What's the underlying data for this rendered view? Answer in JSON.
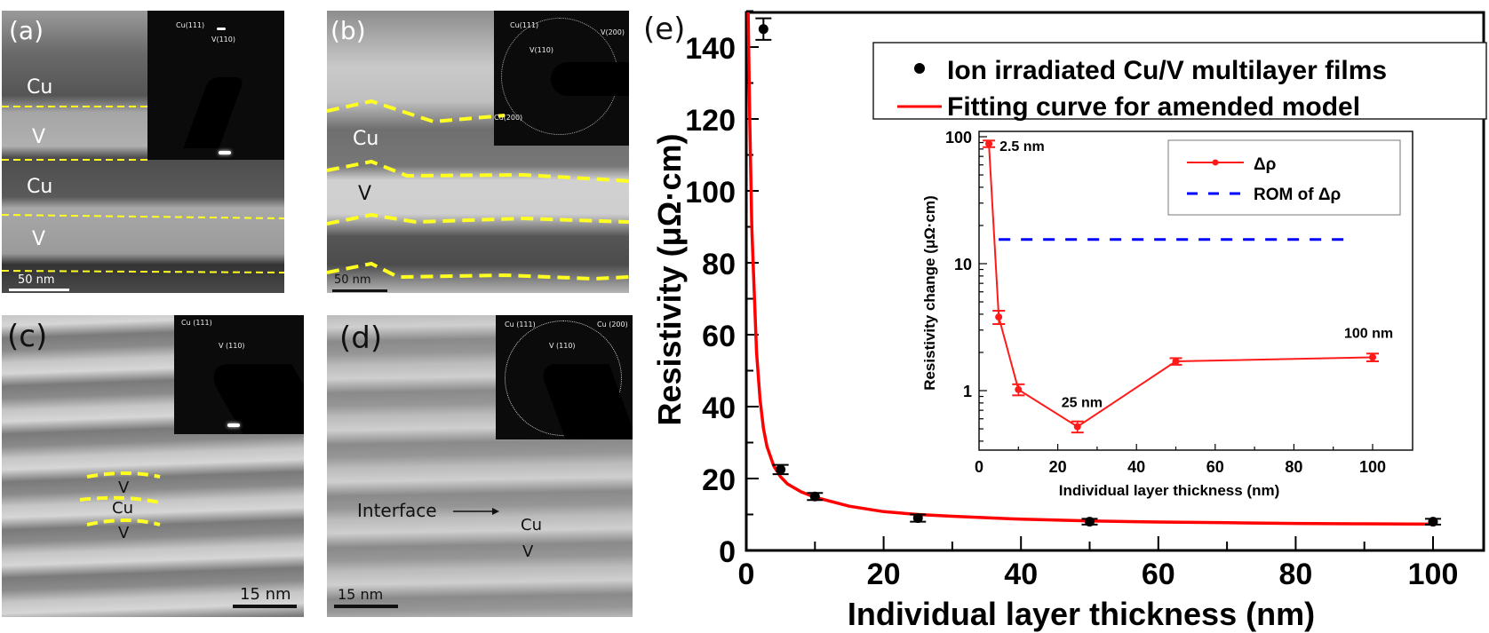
{
  "panels": {
    "a": {
      "label": "(a)",
      "layers": [
        "Cu",
        "V",
        "Cu",
        "V"
      ],
      "saed": {
        "cu111": "Cu(111)",
        "v110": "V(110)"
      },
      "scale": "50 nm"
    },
    "b": {
      "label": "(b)",
      "layers": [
        "Cu",
        "V"
      ],
      "saed": {
        "cu111": "Cu(111)",
        "v110": "V(110)",
        "v200": "V(200)",
        "cu200": "Cu(200)"
      },
      "scale": "50 nm"
    },
    "c": {
      "label": "(c)",
      "layers": [
        "V",
        "Cu",
        "V"
      ],
      "saed": {
        "cu111": "Cu (111)",
        "v110": "V (110)"
      },
      "scale": "15 nm"
    },
    "d": {
      "label": "(d)",
      "annotation": "Interface",
      "layers": [
        "Cu",
        "V"
      ],
      "saed": {
        "cu111": "Cu (111)",
        "v110": "V (110)",
        "cu200": "Cu (200)"
      },
      "scale": "15 nm"
    }
  },
  "colors": {
    "fit_red": "#ff0000",
    "inset_red": "#ff1a1a",
    "rom_blue": "#0000ff",
    "dashed_yellow": "#ffff22",
    "marker_black": "#000000"
  },
  "chart_data": [
    {
      "panel_label": "(e)",
      "type": "scatter",
      "title": "",
      "xlabel": "Individual layer thickness (nm)",
      "ylabel": "Resistivity (μΩ·cm)",
      "xlim": [
        0,
        110
      ],
      "ylim": [
        0,
        150
      ],
      "xticks": [
        0,
        20,
        40,
        60,
        80,
        100
      ],
      "yticks": [
        0,
        20,
        40,
        60,
        80,
        100,
        120,
        140
      ],
      "grid": false,
      "legend_position": "top-right",
      "series": [
        {
          "name": "Ion irradiated Cu/V multilayer films",
          "kind": "points-with-errorbars",
          "x": [
            2.5,
            5,
            10,
            25,
            50,
            100
          ],
          "y": [
            145,
            22.5,
            15,
            9,
            8,
            8
          ],
          "yerr": [
            3,
            1.3,
            1,
            1,
            0.8,
            0.8
          ]
        },
        {
          "name": "Fitting curve for amended model",
          "kind": "line",
          "x": [
            0.2,
            0.5,
            0.8,
            1,
            1.5,
            2,
            2.5,
            3,
            4,
            5,
            6,
            8,
            10,
            15,
            20,
            25,
            30,
            40,
            50,
            60,
            70,
            80,
            90,
            100
          ],
          "y": [
            160,
            120,
            90,
            80,
            55,
            42,
            34,
            29,
            23.5,
            20.5,
            18.5,
            16.3,
            14.8,
            12.3,
            10.8,
            10,
            9.5,
            8.7,
            8.2,
            7.9,
            7.7,
            7.5,
            7.4,
            7.3
          ]
        }
      ]
    },
    {
      "type": "line",
      "role": "inset",
      "title": "",
      "xlabel": "Individual layer thickness (nm)",
      "ylabel": "Resistivity change (μΩ·cm)",
      "xlim": [
        0,
        110
      ],
      "ylim": [
        0.3,
        100
      ],
      "yscale": "log",
      "xticks": [
        0,
        20,
        40,
        60,
        80,
        100
      ],
      "yticks": [
        1,
        10,
        100
      ],
      "grid": false,
      "legend_position": "top-right",
      "series": [
        {
          "name": "Δρ",
          "x": [
            2.5,
            5,
            10,
            25,
            50,
            100
          ],
          "y": [
            88,
            3.8,
            1.02,
            0.52,
            1.7,
            1.83
          ],
          "yerr_rel": [
            0.06,
            0.12,
            0.1,
            0.1,
            0.06,
            0.07
          ]
        },
        {
          "name": "ROM of Δρ",
          "style": "dashed",
          "x": [
            5,
            95
          ],
          "y": [
            15.5,
            15.5
          ]
        }
      ],
      "annotations": [
        {
          "text": "2.5 nm",
          "x": 2.5,
          "y": 88
        },
        {
          "text": "25 nm",
          "x": 25,
          "y": 0.52
        },
        {
          "text": "100 nm",
          "x": 100,
          "y": 1.83
        }
      ]
    }
  ]
}
